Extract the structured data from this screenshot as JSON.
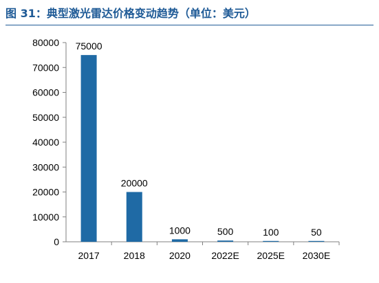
{
  "figure": {
    "title": "图 31：典型激光雷达价格变动趋势（单位：美元）"
  },
  "colors": {
    "bar": "#1f6aa5",
    "title": "#1e5a96",
    "axis": "#7f7f7f",
    "text": "#000000"
  },
  "chart_data": {
    "type": "bar",
    "categories": [
      "2017",
      "2018",
      "2020",
      "2022E",
      "2025E",
      "2030E"
    ],
    "values": [
      75000,
      20000,
      1000,
      500,
      100,
      50
    ],
    "data_labels": [
      "75000",
      "20000",
      "1000",
      "500",
      "100",
      "50"
    ],
    "yticks": [
      0,
      10000,
      20000,
      30000,
      40000,
      50000,
      60000,
      70000,
      80000
    ],
    "ylim": [
      0,
      80000
    ],
    "grid": false,
    "legend": "none"
  }
}
